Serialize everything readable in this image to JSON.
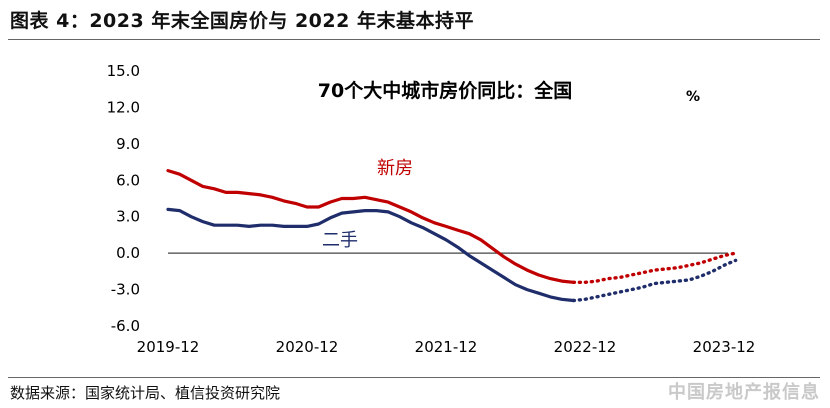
{
  "header": {
    "title": "图表 4：2023 年末全国房价与 2022 年末基本持平"
  },
  "footer": {
    "source": "数据来源：国家统计局、植信投资研究院",
    "watermark": "中国房地产报信息"
  },
  "colors": {
    "new_home": "#c00000",
    "second_hand": "#1f2d6b"
  },
  "chart_data": {
    "type": "line",
    "title": "70个大中城市房价同比：全国",
    "unit": "%",
    "ylim": [
      -6.0,
      15.0
    ],
    "y_ticks": [
      "15.0",
      "12.0",
      "9.0",
      "6.0",
      "3.0",
      "0.0",
      "-3.0",
      "-6.0"
    ],
    "x_ticks": [
      "2019-12",
      "2020-12",
      "2021-12",
      "2022-12",
      "2023-12"
    ],
    "x_tick_index": [
      0,
      12,
      24,
      36,
      48
    ],
    "grid": false,
    "series": [
      {
        "name": "新房",
        "color": "#c00000",
        "actual": [
          6.8,
          6.5,
          6.0,
          5.5,
          5.3,
          5.0,
          5.0,
          4.9,
          4.8,
          4.6,
          4.3,
          4.1,
          3.8,
          3.8,
          4.2,
          4.5,
          4.5,
          4.6,
          4.4,
          4.2,
          3.8,
          3.4,
          2.9,
          2.5,
          2.2,
          1.9,
          1.6,
          1.1,
          0.4,
          -0.3,
          -0.9,
          -1.4,
          -1.8,
          -2.1,
          -2.3,
          -2.4
        ],
        "projected": [
          -2.4,
          -2.4,
          -2.3,
          -2.1,
          -2.0,
          -1.8,
          -1.6,
          -1.4,
          -1.3,
          -1.2,
          -1.0,
          -0.8,
          -0.5,
          -0.2,
          0.0
        ]
      },
      {
        "name": "二手",
        "color": "#1f2d6b",
        "actual": [
          3.6,
          3.5,
          3.0,
          2.6,
          2.3,
          2.3,
          2.3,
          2.2,
          2.3,
          2.3,
          2.2,
          2.2,
          2.2,
          2.4,
          2.9,
          3.3,
          3.4,
          3.5,
          3.5,
          3.4,
          3.0,
          2.5,
          2.1,
          1.6,
          1.1,
          0.5,
          -0.2,
          -0.8,
          -1.4,
          -2.0,
          -2.6,
          -3.0,
          -3.3,
          -3.6,
          -3.8,
          -3.9
        ],
        "projected": [
          -3.9,
          -3.8,
          -3.6,
          -3.4,
          -3.2,
          -3.0,
          -2.8,
          -2.5,
          -2.4,
          -2.3,
          -2.2,
          -1.9,
          -1.5,
          -1.0,
          -0.6
        ]
      }
    ]
  }
}
